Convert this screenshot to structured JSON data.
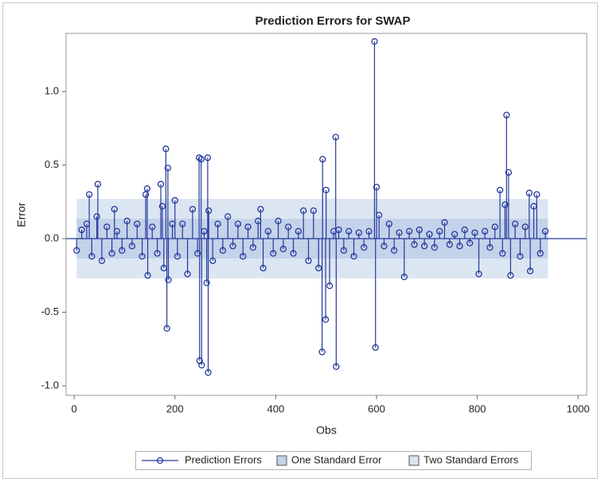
{
  "chart_data": {
    "type": "needle",
    "title": "Prediction Errors for SWAP",
    "x_label": "Obs",
    "y_label": "Error",
    "xlim": [
      -16,
      1017
    ],
    "ylim": [
      -1.065,
      1.395
    ],
    "xticks": [
      0,
      200,
      400,
      600,
      800,
      1000
    ],
    "yticks": [
      {
        "value": -1.0,
        "label": "-1.0"
      },
      {
        "value": -0.5,
        "label": "-0.5"
      },
      {
        "value": 0.0,
        "label": "0.0"
      },
      {
        "value": 0.5,
        "label": "0.5"
      },
      {
        "value": 1.0,
        "label": "1.0"
      }
    ],
    "series": [
      {
        "name": "Prediction Errors",
        "color": "#23399b",
        "x": [
          5,
          15,
          25,
          30,
          35,
          45,
          47,
          55,
          65,
          75,
          80,
          85,
          95,
          105,
          115,
          125,
          135,
          142,
          145,
          146,
          155,
          165,
          172,
          175,
          178,
          182,
          184,
          186,
          187,
          195,
          200,
          205,
          215,
          225,
          235,
          245,
          248,
          249,
          252,
          253,
          258,
          263,
          265,
          266,
          267,
          275,
          285,
          295,
          305,
          315,
          325,
          335,
          345,
          355,
          365,
          370,
          375,
          385,
          395,
          405,
          415,
          425,
          435,
          445,
          455,
          465,
          475,
          485,
          492,
          493,
          499,
          500,
          507,
          515,
          519,
          520,
          525,
          535,
          545,
          555,
          565,
          575,
          585,
          596,
          598,
          600,
          605,
          615,
          625,
          635,
          645,
          655,
          665,
          675,
          685,
          695,
          705,
          715,
          725,
          735,
          745,
          755,
          765,
          775,
          785,
          795,
          803,
          815,
          825,
          835,
          845,
          850,
          855,
          858,
          862,
          866,
          875,
          885,
          895,
          903,
          905,
          912,
          918,
          925,
          935
        ],
        "values": [
          -0.08,
          0.06,
          0.1,
          0.3,
          -0.12,
          0.15,
          0.37,
          -0.15,
          0.08,
          -0.1,
          0.2,
          0.05,
          -0.08,
          0.12,
          -0.05,
          0.1,
          -0.12,
          0.3,
          0.34,
          -0.25,
          0.08,
          -0.1,
          0.37,
          0.22,
          -0.2,
          0.61,
          -0.61,
          0.48,
          -0.28,
          0.1,
          0.26,
          -0.12,
          0.1,
          -0.24,
          0.2,
          -0.1,
          0.55,
          -0.83,
          0.54,
          -0.86,
          0.05,
          -0.3,
          0.55,
          -0.91,
          0.19,
          -0.15,
          0.1,
          -0.08,
          0.15,
          -0.05,
          0.1,
          -0.12,
          0.08,
          -0.06,
          0.12,
          0.2,
          -0.2,
          0.05,
          -0.1,
          0.12,
          -0.07,
          0.08,
          -0.1,
          0.05,
          0.19,
          -0.15,
          0.19,
          -0.2,
          -0.77,
          0.54,
          -0.55,
          0.33,
          -0.32,
          0.05,
          0.69,
          -0.87,
          0.06,
          -0.08,
          0.05,
          -0.12,
          0.04,
          -0.06,
          0.05,
          1.34,
          -0.74,
          0.35,
          0.16,
          -0.05,
          0.1,
          -0.08,
          0.04,
          -0.26,
          0.05,
          -0.04,
          0.06,
          -0.05,
          0.03,
          -0.06,
          0.05,
          0.11,
          -0.04,
          0.03,
          -0.05,
          0.06,
          -0.03,
          0.04,
          -0.24,
          0.05,
          -0.06,
          0.08,
          0.33,
          -0.1,
          0.23,
          0.84,
          0.45,
          -0.25,
          0.1,
          -0.12,
          0.08,
          0.31,
          -0.22,
          0.22,
          0.3,
          -0.1,
          0.05
        ]
      }
    ],
    "bands": [
      {
        "name": "Two Standard Errors",
        "color": "#dce5f2",
        "lower": -0.27,
        "upper": 0.27,
        "x": [
          5,
          940
        ]
      },
      {
        "name": "One Standard Error",
        "color": "#c4d2ea",
        "lower": -0.135,
        "upper": 0.135,
        "x": [
          5,
          940
        ]
      }
    ],
    "reference_line": 0
  }
}
